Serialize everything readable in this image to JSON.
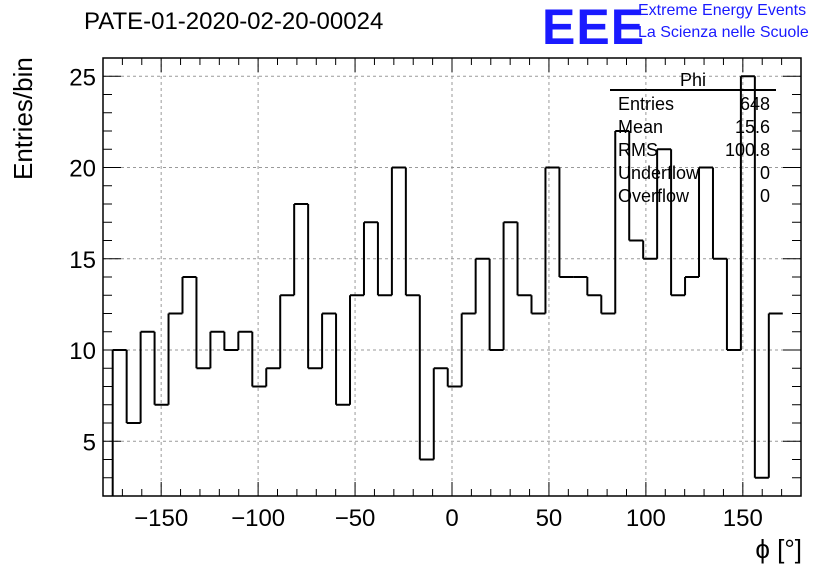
{
  "header": {
    "title": "PATE-01-2020-02-20-00024",
    "logo_text": "EEE",
    "logo_line1": "Extreme Energy Events",
    "logo_line2": "La Scienza nelle Scuole",
    "logo_color": "#1a1aff"
  },
  "stats": {
    "title": "Phi",
    "rows": [
      {
        "key": "Entries",
        "value": "648"
      },
      {
        "key": "Mean",
        "value": "15.6"
      },
      {
        "key": "RMS",
        "value": "100.8"
      },
      {
        "key": "Underflow",
        "value": "0"
      },
      {
        "key": "Overflow",
        "value": "0"
      }
    ]
  },
  "chart_data": {
    "type": "bar",
    "style": "step-histogram",
    "xlabel": "ϕ [°]",
    "ylabel": "Entries/bin",
    "xlim": [
      -180,
      180
    ],
    "ylim": [
      2,
      26
    ],
    "bin_width": 7.2,
    "x_ticks": [
      "−150",
      "−100",
      "−50",
      "0",
      "50",
      "100",
      "150"
    ],
    "x_tick_values": [
      -150,
      -100,
      -50,
      0,
      50,
      100,
      150
    ],
    "y_ticks": [
      5,
      10,
      15,
      20,
      25
    ],
    "grid": true,
    "bin_edges_start": -175,
    "values": [
      10,
      6,
      11,
      7,
      12,
      14,
      9,
      11,
      10,
      11,
      8,
      9,
      13,
      18,
      9,
      12,
      7,
      13,
      17,
      13,
      20,
      13,
      4,
      9,
      8,
      12,
      15,
      10,
      17,
      13,
      12,
      20,
      14,
      14,
      13,
      12,
      22,
      16,
      15,
      21,
      13,
      14,
      20,
      15,
      10,
      25,
      3,
      12
    ]
  }
}
